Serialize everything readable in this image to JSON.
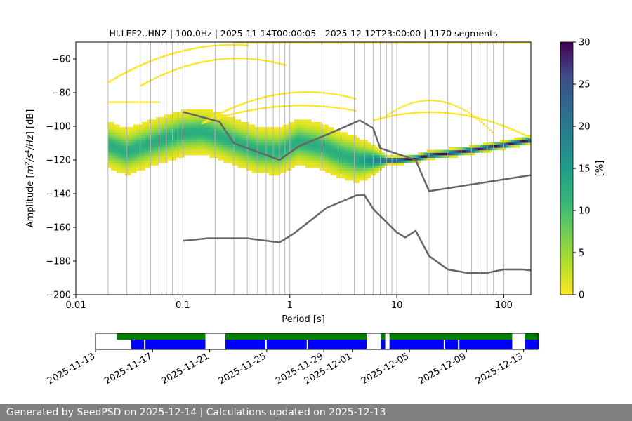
{
  "chart_data": [
    {
      "type": "heatmap",
      "title": "HI.LEF2..HNZ | 100.0Hz | 2025-11-14T00:00:05 - 2025-12-12T23:00:00 | 1170 segments",
      "xlabel": "Period [s]",
      "ylabel": "Amplitude [m2/s4/Hz] [dB]",
      "xscale": "log",
      "xlim": [
        0.01,
        179
      ],
      "ylim": [
        -200,
        -50
      ],
      "x_ticks": [
        "0.01",
        "0.1",
        "1",
        "10",
        "100"
      ],
      "x_tick_values": [
        0.01,
        0.1,
        1,
        10,
        100
      ],
      "y_ticks": [
        "−200",
        "−180",
        "−160",
        "−140",
        "−120",
        "−100",
        "−80",
        "−60"
      ],
      "y_tick_values": [
        -200,
        -180,
        -160,
        -140,
        -120,
        -100,
        -80,
        -60
      ],
      "grid": "vertical log grid lines",
      "colorbar": {
        "label": "[%]",
        "range": [
          0,
          30
        ],
        "ticks": [
          "0",
          "5",
          "10",
          "15",
          "20",
          "25",
          "30"
        ],
        "colormap": "viridis (reversed)"
      },
      "density_ridge": {
        "x": [
          0.02,
          0.03,
          0.05,
          0.1,
          0.15,
          0.2,
          0.3,
          0.5,
          0.8,
          1.2,
          2,
          3,
          4.5,
          6,
          8,
          10,
          15,
          20,
          30,
          50,
          100,
          179
        ],
        "y": [
          -111,
          -115,
          -110,
          -104,
          -103,
          -105,
          -109,
          -114,
          -115,
          -109,
          -112,
          -117,
          -120,
          -120,
          -120,
          -120,
          -119,
          -117,
          -116,
          -114,
          -111,
          -108
        ]
      },
      "series": [
        {
          "x": [
            0.1,
            0.22,
            0.3,
            0.8,
            1.2,
            2.3,
            4.5,
            6,
            7,
            15,
            20,
            179
          ],
          "y": [
            -91.5,
            -97.3,
            -110,
            -120,
            -112,
            -104.5,
            -96.5,
            -101,
            -113,
            -120,
            -138.5,
            -129
          ],
          "color": "#666666"
        },
        {
          "x": [
            0.1,
            0.17,
            0.4,
            0.8,
            1.1,
            2.2,
            4.2,
            5,
            6,
            10,
            12,
            15,
            20,
            30,
            45,
            70,
            100,
            150,
            179
          ],
          "y": [
            -168,
            -166.5,
            -166.5,
            -169,
            -163.5,
            -148.5,
            -141,
            -141,
            -149,
            -163,
            -166,
            -162,
            -177,
            -185,
            -187,
            -187,
            -185,
            -185,
            -185.5
          ],
          "color": "#666666"
        }
      ]
    },
    {
      "type": "timeline",
      "x_ticks": [
        "2025-11-13",
        "2025-11-17",
        "2025-11-21",
        "2025-11-25",
        "2025-11-29",
        "2025-12-01",
        "2025-12-05",
        "2025-12-09",
        "2025-12-13"
      ],
      "x_tick_days": [
        0,
        4,
        8,
        12,
        16,
        18,
        22,
        26,
        30
      ],
      "x_start_date": "2025-11-13",
      "x_end_date": "2025-12-14",
      "colors": {
        "available": "#008000",
        "used": "#0000ff"
      },
      "available_ranges": [
        [
          1.5,
          7.7
        ],
        [
          9.1,
          19.0
        ],
        [
          20.0,
          20.3
        ],
        [
          20.6,
          29.2
        ],
        [
          30.1,
          31.1
        ]
      ],
      "used_ranges": [
        [
          2.5,
          3.4
        ],
        [
          3.5,
          7.7
        ],
        [
          9.1,
          11.9
        ],
        [
          12.0,
          14.8
        ],
        [
          14.9,
          19.0
        ],
        [
          20.0,
          20.3
        ],
        [
          20.6,
          24.4
        ],
        [
          24.5,
          25.4
        ],
        [
          25.5,
          29.2
        ],
        [
          30.1,
          31.1
        ]
      ]
    }
  ],
  "footer": {
    "text": "Generated by SeedPSD on 2025-12-14 | Calculations updated on 2025-12-13"
  }
}
